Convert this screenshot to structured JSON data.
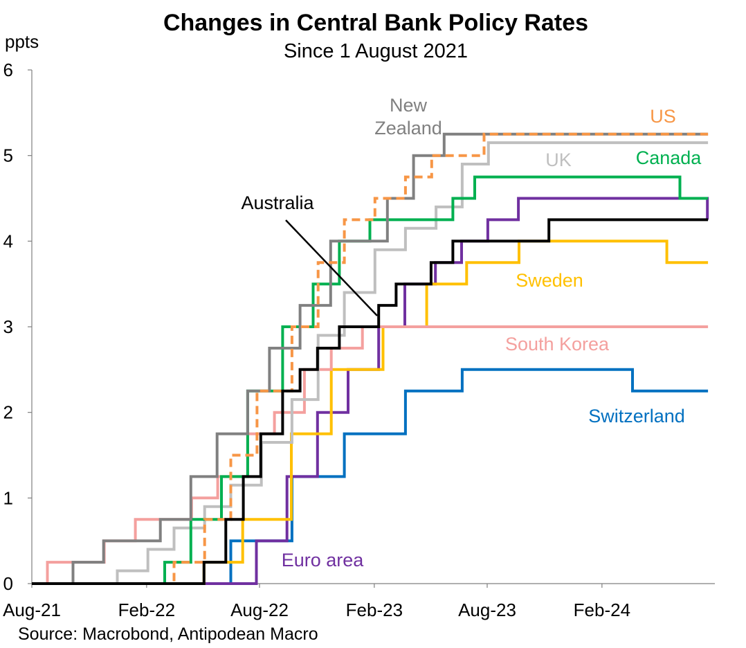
{
  "chart_data": {
    "type": "line",
    "title": "Changes in Central Bank Policy Rates",
    "subtitle": "Since 1 August 2021",
    "ylabel": "ppts",
    "source": "Source: Macrobond, Antipodean Macro",
    "ylim": [
      0,
      6
    ],
    "yticks": [
      "0",
      "1",
      "2",
      "3",
      "4",
      "5",
      "6"
    ],
    "xlim": [
      "2021-08-01",
      "2024-07-31"
    ],
    "xticks": [
      {
        "label": "Aug-21",
        "date": "2021-08-01"
      },
      {
        "label": "Feb-22",
        "date": "2022-02-01"
      },
      {
        "label": "Aug-22",
        "date": "2022-08-01"
      },
      {
        "label": "Feb-23",
        "date": "2023-02-01"
      },
      {
        "label": "Aug-23",
        "date": "2023-08-01"
      },
      {
        "label": "Feb-24",
        "date": "2024-02-01"
      }
    ],
    "grid": false,
    "legend": "inline labels",
    "step": true,
    "series": [
      {
        "name": "Switzerland",
        "color": "#0070C0",
        "dashed": false,
        "points": [
          [
            "2021-08-01",
            0
          ],
          [
            "2022-06-16",
            0.5
          ],
          [
            "2022-09-22",
            1.25
          ],
          [
            "2022-12-15",
            1.75
          ],
          [
            "2023-03-23",
            2.25
          ],
          [
            "2023-06-22",
            2.5
          ],
          [
            "2024-03-21",
            2.25
          ],
          [
            "2024-07-20",
            2.25
          ]
        ]
      },
      {
        "name": "Euro area",
        "color": "#7030A0",
        "dashed": false,
        "points": [
          [
            "2021-08-01",
            0
          ],
          [
            "2022-07-27",
            0.5
          ],
          [
            "2022-09-14",
            1.25
          ],
          [
            "2022-11-02",
            2.0
          ],
          [
            "2022-12-21",
            2.5
          ],
          [
            "2023-02-08",
            3.0
          ],
          [
            "2023-03-22",
            3.5
          ],
          [
            "2023-05-10",
            3.75
          ],
          [
            "2023-06-21",
            4.0
          ],
          [
            "2023-08-02",
            4.25
          ],
          [
            "2023-09-20",
            4.5
          ],
          [
            "2024-07-19",
            4.25
          ]
        ]
      },
      {
        "name": "Sweden",
        "color": "#FFC000",
        "dashed": false,
        "points": [
          [
            "2021-08-01",
            0
          ],
          [
            "2022-05-04",
            0.25
          ],
          [
            "2022-07-05",
            0.75
          ],
          [
            "2022-09-21",
            1.75
          ],
          [
            "2022-11-24",
            2.5
          ],
          [
            "2023-02-15",
            3.0
          ],
          [
            "2023-04-26",
            3.5
          ],
          [
            "2023-06-29",
            3.75
          ],
          [
            "2023-09-21",
            4.0
          ],
          [
            "2024-05-15",
            3.75
          ],
          [
            "2024-07-20",
            3.75
          ]
        ]
      },
      {
        "name": "South Korea",
        "color": "#F4A09E",
        "dashed": false,
        "points": [
          [
            "2021-08-01",
            0
          ],
          [
            "2021-08-26",
            0.25
          ],
          [
            "2021-11-25",
            0.5
          ],
          [
            "2022-01-14",
            0.75
          ],
          [
            "2022-04-14",
            1.0
          ],
          [
            "2022-05-26",
            1.25
          ],
          [
            "2022-07-13",
            1.75
          ],
          [
            "2022-08-25",
            2.0
          ],
          [
            "2022-10-12",
            2.5
          ],
          [
            "2022-11-24",
            2.75
          ],
          [
            "2023-01-13",
            3.0
          ],
          [
            "2024-07-20",
            3.0
          ]
        ]
      },
      {
        "name": "UK",
        "color": "#BFBFBF",
        "dashed": false,
        "points": [
          [
            "2021-08-01",
            0
          ],
          [
            "2021-12-16",
            0.15
          ],
          [
            "2022-02-03",
            0.4
          ],
          [
            "2022-03-17",
            0.65
          ],
          [
            "2022-05-05",
            0.9
          ],
          [
            "2022-06-16",
            1.15
          ],
          [
            "2022-08-04",
            1.65
          ],
          [
            "2022-09-22",
            2.15
          ],
          [
            "2022-11-03",
            2.9
          ],
          [
            "2022-12-15",
            3.4
          ],
          [
            "2023-02-02",
            3.9
          ],
          [
            "2023-03-23",
            4.15
          ],
          [
            "2023-05-11",
            4.4
          ],
          [
            "2023-06-22",
            4.9
          ],
          [
            "2023-08-03",
            5.15
          ],
          [
            "2024-07-20",
            5.15
          ]
        ]
      },
      {
        "name": "Canada",
        "color": "#00B050",
        "dashed": false,
        "points": [
          [
            "2021-08-01",
            0
          ],
          [
            "2022-03-02",
            0.25
          ],
          [
            "2022-04-13",
            0.75
          ],
          [
            "2022-06-01",
            1.25
          ],
          [
            "2022-07-13",
            2.25
          ],
          [
            "2022-09-07",
            3.0
          ],
          [
            "2022-10-26",
            3.5
          ],
          [
            "2022-12-07",
            4.0
          ],
          [
            "2023-01-25",
            4.25
          ],
          [
            "2023-06-07",
            4.5
          ],
          [
            "2023-07-12",
            4.75
          ],
          [
            "2024-06-05",
            4.5
          ],
          [
            "2024-07-20",
            4.5
          ]
        ]
      },
      {
        "name": "New Zealand",
        "color": "#808080",
        "dashed": false,
        "points": [
          [
            "2021-08-01",
            0
          ],
          [
            "2021-10-06",
            0.25
          ],
          [
            "2021-11-24",
            0.5
          ],
          [
            "2022-02-23",
            0.75
          ],
          [
            "2022-04-13",
            1.25
          ],
          [
            "2022-05-25",
            1.75
          ],
          [
            "2022-07-13",
            2.25
          ],
          [
            "2022-08-17",
            2.75
          ],
          [
            "2022-10-05",
            3.25
          ],
          [
            "2022-11-23",
            4.0
          ],
          [
            "2023-02-22",
            4.5
          ],
          [
            "2023-04-05",
            5.0
          ],
          [
            "2023-05-24",
            5.25
          ],
          [
            "2024-07-20",
            5.25
          ]
        ]
      },
      {
        "name": "US",
        "color": "#F79646",
        "dashed": true,
        "points": [
          [
            "2021-08-01",
            0
          ],
          [
            "2022-03-17",
            0.25
          ],
          [
            "2022-05-05",
            0.75
          ],
          [
            "2022-06-16",
            1.5
          ],
          [
            "2022-07-28",
            2.25
          ],
          [
            "2022-09-22",
            3.0
          ],
          [
            "2022-11-03",
            3.75
          ],
          [
            "2022-12-15",
            4.25
          ],
          [
            "2023-02-02",
            4.5
          ],
          [
            "2023-03-23",
            4.75
          ],
          [
            "2023-05-04",
            5.0
          ],
          [
            "2023-07-27",
            5.25
          ],
          [
            "2024-07-20",
            5.25
          ]
        ]
      },
      {
        "name": "Australia",
        "color": "#000000",
        "dashed": false,
        "points": [
          [
            "2021-08-01",
            0
          ],
          [
            "2022-05-04",
            0.25
          ],
          [
            "2022-06-08",
            0.75
          ],
          [
            "2022-07-06",
            1.25
          ],
          [
            "2022-08-03",
            1.75
          ],
          [
            "2022-09-07",
            2.25
          ],
          [
            "2022-10-05",
            2.5
          ],
          [
            "2022-11-02",
            2.75
          ],
          [
            "2022-12-07",
            3.0
          ],
          [
            "2023-02-08",
            3.25
          ],
          [
            "2023-03-08",
            3.5
          ],
          [
            "2023-05-03",
            3.75
          ],
          [
            "2023-06-07",
            4.0
          ],
          [
            "2023-11-08",
            4.25
          ],
          [
            "2024-07-20",
            4.25
          ]
        ]
      }
    ],
    "annotations": [
      {
        "series": "New Zealand",
        "lines": [
          "New",
          "Zealand"
        ],
        "color": "#808080"
      },
      {
        "series": "US",
        "lines": [
          "US"
        ],
        "color": "#F79646"
      },
      {
        "series": "UK",
        "lines": [
          "UK"
        ],
        "color": "#BFBFBF"
      },
      {
        "series": "Canada",
        "lines": [
          "Canada"
        ],
        "color": "#00B050"
      },
      {
        "series": "Australia",
        "lines": [
          "Australia"
        ],
        "color": "#000000",
        "arrow": true
      },
      {
        "series": "Sweden",
        "lines": [
          "Sweden"
        ],
        "color": "#FFC000"
      },
      {
        "series": "South Korea",
        "lines": [
          "South Korea"
        ],
        "color": "#F4A09E"
      },
      {
        "series": "Switzerland",
        "lines": [
          "Switzerland"
        ],
        "color": "#0070C0"
      },
      {
        "series": "Euro area",
        "lines": [
          "Euro area"
        ],
        "color": "#7030A0"
      }
    ]
  }
}
